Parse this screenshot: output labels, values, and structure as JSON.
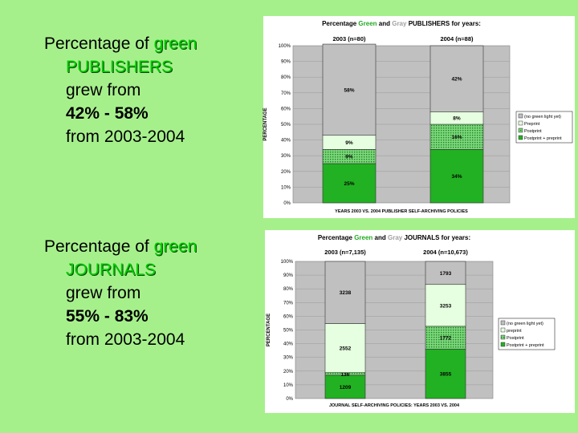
{
  "slide": {
    "block1": {
      "prefix": "Percentage of",
      "green_word": "green",
      "noun": "PUBLISHERS",
      "grew": "grew from",
      "range": "42% - 58%",
      "years": "from 2003-2004"
    },
    "block2": {
      "prefix": "Percentage of",
      "green_word": "green",
      "noun": "JOURNALS",
      "grew": "grew from",
      "range": "55% - 83%",
      "years": "from 2003-2004"
    }
  },
  "colors": {
    "background": "#a6f08c",
    "plot_bg": "#c0c0c0",
    "no_green": "#c0c0c0",
    "preprint": "#e6ffe0",
    "postprint": "#2fb52f",
    "postprint_plus_preprint": "#22b122",
    "title_green": "#22aa22",
    "title_gray": "#a0a0a0"
  },
  "chart_data": [
    {
      "type": "bar",
      "stacked": true,
      "title": {
        "pre": "Percentage",
        "green": "Green",
        "mid": "and",
        "gray": "Gray",
        "post": "PUBLISHERS for years:"
      },
      "categories": [
        "2003 (n=80)",
        "2004 (n=88)"
      ],
      "ylabel": "PERCENTAGE",
      "xlabel": "YEARS 2003 VS. 2004 PUBLISHER SELF-ARCHIVING POLICIES",
      "ylim": [
        0,
        100
      ],
      "yticks": [
        "0%",
        "10%",
        "20%",
        "30%",
        "40%",
        "50%",
        "60%",
        "70%",
        "80%",
        "90%",
        "100%"
      ],
      "legend_position": "right",
      "series": [
        {
          "name": "Postprint + preprint",
          "values": [
            25,
            34
          ],
          "labels": [
            "25%",
            "34%"
          ]
        },
        {
          "name": "Postprint",
          "values": [
            9,
            16
          ],
          "labels": [
            "9%",
            "16%"
          ]
        },
        {
          "name": "Preprint",
          "values": [
            9,
            8
          ],
          "labels": [
            "9%",
            "8%"
          ]
        },
        {
          "name": "(no green light yet)",
          "values": [
            58,
            42
          ],
          "labels": [
            "58%",
            "42%"
          ]
        }
      ]
    },
    {
      "type": "bar",
      "stacked": true,
      "title": {
        "pre": "Percentage",
        "green": "Green",
        "mid": "and",
        "gray": "Gray",
        "post": "JOURNALS for years:"
      },
      "categories": [
        "2003 (n=7,135)",
        "2004 (n=10,673)"
      ],
      "ylabel": "PERCENTAGE",
      "xlabel": "JOURNAL SELF-ARCHIVING POLICIES: YEARS 2003 VS. 2004",
      "ylim": [
        0,
        100
      ],
      "yticks": [
        "0%",
        "10%",
        "20%",
        "30%",
        "40%",
        "50%",
        "60%",
        "70%",
        "80%",
        "90%",
        "100%"
      ],
      "legend_position": "right",
      "series": [
        {
          "name": "Postprint + preprint",
          "values": [
            17.0,
            36.1
          ],
          "labels": [
            "1209",
            "3855"
          ]
        },
        {
          "name": "Postprint",
          "values": [
            1.9,
            16.6
          ],
          "labels": [
            "136",
            "1772"
          ]
        },
        {
          "name": "preprint",
          "values": [
            35.8,
            30.5
          ],
          "labels": [
            "2552",
            "3253"
          ]
        },
        {
          "name": "(no green light yet)",
          "values": [
            45.3,
            16.8
          ],
          "labels": [
            "3238",
            "1793"
          ]
        }
      ]
    }
  ]
}
